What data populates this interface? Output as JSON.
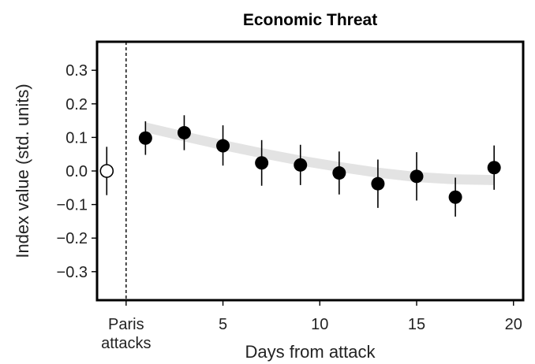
{
  "chart_data": {
    "type": "scatter",
    "title": "Economic Threat",
    "xlabel": "Days from attack",
    "ylabel": "Index value (std. units)",
    "xlim": [
      -1.5,
      20.5
    ],
    "ylim": [
      -0.385,
      0.385
    ],
    "x_ticks": [
      {
        "value": 0,
        "label": [
          "Paris",
          "attacks"
        ]
      },
      {
        "value": 5,
        "label": [
          "5"
        ]
      },
      {
        "value": 10,
        "label": [
          "10"
        ]
      },
      {
        "value": 15,
        "label": [
          "15"
        ]
      },
      {
        "value": 20,
        "label": [
          "20"
        ]
      }
    ],
    "y_ticks": [
      {
        "value": 0.3,
        "label": "0.3"
      },
      {
        "value": 0.2,
        "label": "0.2"
      },
      {
        "value": 0.1,
        "label": "0.1"
      },
      {
        "value": 0.0,
        "label": "0.0"
      },
      {
        "value": -0.1,
        "label": "−0.1"
      },
      {
        "value": -0.2,
        "label": "−0.2"
      },
      {
        "value": -0.3,
        "label": "−0.3"
      }
    ],
    "attack_line_x": 0,
    "pre_attack": {
      "x": -1,
      "y": 0.0,
      "low": -0.072,
      "high": 0.072
    },
    "points": [
      {
        "x": 1,
        "y": 0.098,
        "low": 0.048,
        "high": 0.148
      },
      {
        "x": 3,
        "y": 0.114,
        "low": 0.062,
        "high": 0.166
      },
      {
        "x": 5,
        "y": 0.075,
        "low": 0.016,
        "high": 0.136
      },
      {
        "x": 7,
        "y": 0.024,
        "low": -0.044,
        "high": 0.092
      },
      {
        "x": 9,
        "y": 0.018,
        "low": -0.042,
        "high": 0.078
      },
      {
        "x": 11,
        "y": -0.006,
        "low": -0.07,
        "high": 0.058
      },
      {
        "x": 13,
        "y": -0.038,
        "low": -0.11,
        "high": 0.034
      },
      {
        "x": 15,
        "y": -0.016,
        "low": -0.088,
        "high": 0.056
      },
      {
        "x": 17,
        "y": -0.078,
        "low": -0.136,
        "high": -0.02
      },
      {
        "x": 19,
        "y": 0.01,
        "low": -0.056,
        "high": 0.076
      }
    ],
    "fit_band": [
      {
        "x": 1,
        "low": 0.115,
        "high": 0.145
      },
      {
        "x": 3,
        "low": 0.088,
        "high": 0.118
      },
      {
        "x": 5,
        "low": 0.062,
        "high": 0.092
      },
      {
        "x": 7,
        "low": 0.038,
        "high": 0.068
      },
      {
        "x": 9,
        "low": 0.016,
        "high": 0.046
      },
      {
        "x": 11,
        "low": -0.003,
        "high": 0.027
      },
      {
        "x": 13,
        "low": -0.02,
        "high": 0.01
      },
      {
        "x": 15,
        "low": -0.033,
        "high": -0.003
      },
      {
        "x": 17,
        "low": -0.04,
        "high": -0.01
      },
      {
        "x": 19,
        "low": -0.042,
        "high": -0.012
      }
    ],
    "grid": false,
    "colors": {
      "points": "#000000",
      "open_point_fill": "#ffffff",
      "band": "#e3e3e3",
      "frame": "#000000"
    }
  }
}
